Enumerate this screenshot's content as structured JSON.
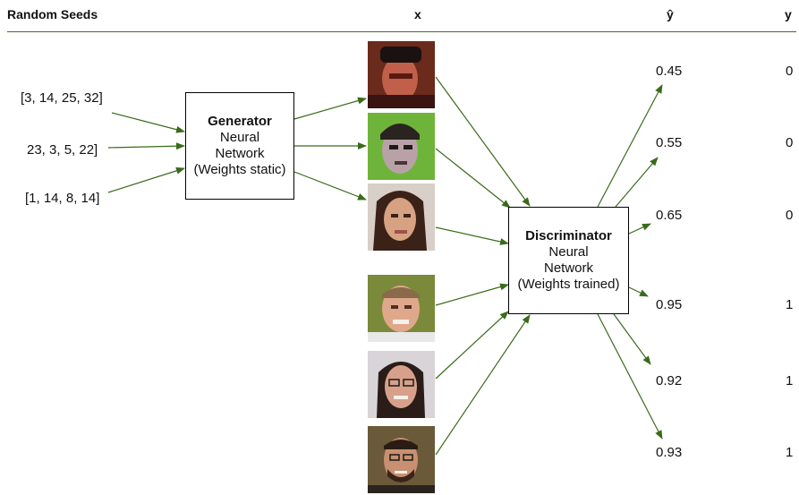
{
  "headers": {
    "random_seeds": "Random Seeds",
    "x": "x",
    "yhat": "ŷ",
    "y": "y"
  },
  "seeds": [
    "[3, 14, 25, 32]",
    "23, 3, 5, 22]",
    "[1, 14, 8, 14]"
  ],
  "generator": {
    "title": "Generator",
    "line1": "Neural",
    "line2": "Network",
    "line3": "(Weights static)"
  },
  "discriminator": {
    "title": "Discriminator",
    "line1": "Neural",
    "line2": "Network",
    "line3": "(Weights trained)"
  },
  "images": [
    {
      "label": "generated-face-1",
      "kind": "generated"
    },
    {
      "label": "generated-face-2",
      "kind": "generated"
    },
    {
      "label": "generated-face-3",
      "kind": "generated"
    },
    {
      "label": "real-face-1",
      "kind": "real"
    },
    {
      "label": "real-face-2",
      "kind": "real"
    },
    {
      "label": "real-face-3",
      "kind": "real"
    }
  ],
  "predictions": [
    "0.45",
    "0.55",
    "0.65",
    "0.95",
    "0.92",
    "0.93"
  ],
  "labels": [
    "0",
    "0",
    "0",
    "1",
    "1",
    "1"
  ],
  "colors": {
    "arrow": "#3a6b1a",
    "rule": "#4a6a2a"
  }
}
